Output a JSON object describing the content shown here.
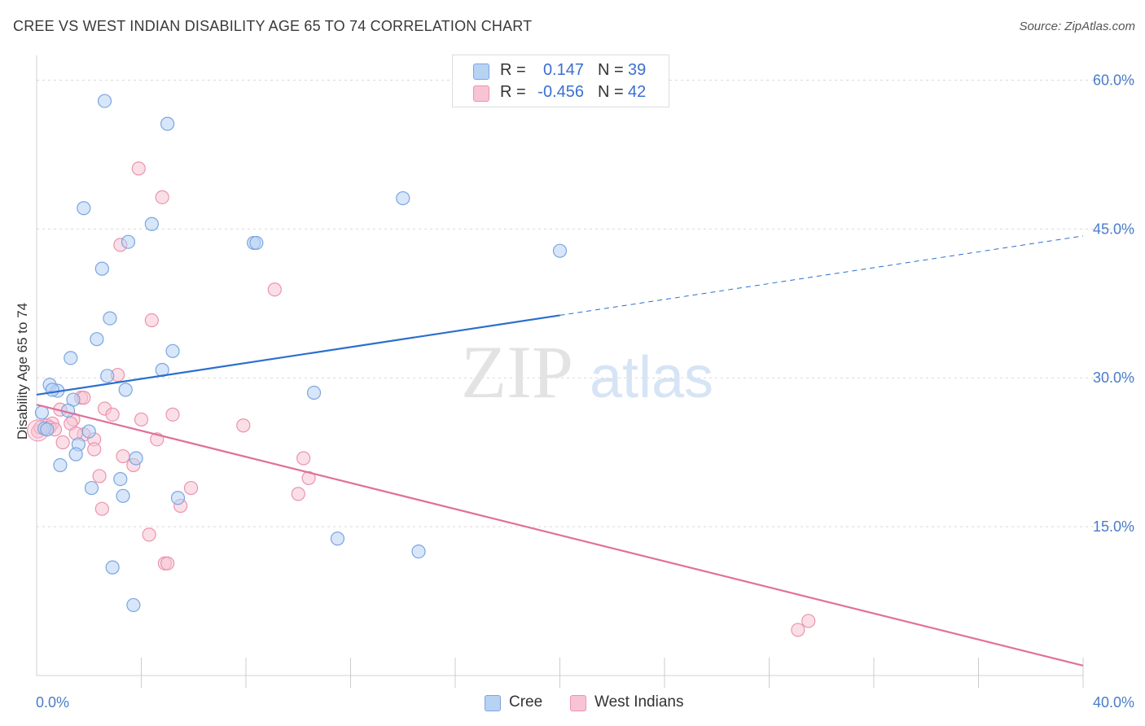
{
  "title": "CREE VS WEST INDIAN DISABILITY AGE 65 TO 74 CORRELATION CHART",
  "source": "Source: ZipAtlas.com",
  "watermark": {
    "part1": "ZIP",
    "part2": "atlas"
  },
  "legend": {
    "r_label": "R =",
    "n_label": "N =",
    "rows": [
      {
        "name": "Cree",
        "r": "0.147",
        "n": "39"
      },
      {
        "name": "West Indians",
        "r": "-0.456",
        "n": "42"
      }
    ]
  },
  "colors": {
    "cree_fill": "#b8d2f4",
    "cree_stroke": "#7aa6e0",
    "cree_line": "#2b6fcf",
    "wi_fill": "#f8c4d3",
    "wi_stroke": "#eb93ae",
    "wi_line": "#e0709a",
    "grid": "#d9d9d9",
    "axis_text": "#4a7cc8"
  },
  "chart_data": {
    "type": "scatter",
    "title": "CREE VS WEST INDIAN DISABILITY AGE 65 TO 74 CORRELATION CHART",
    "xlabel": "",
    "ylabel": "Disability Age 65 to 74",
    "xlim": [
      0,
      40
    ],
    "ylim": [
      0,
      62.5
    ],
    "x_tick_labels": [
      {
        "value": 0,
        "label": "0.0%"
      },
      {
        "value": 40,
        "label": "40.0%"
      }
    ],
    "y_tick_labels": [
      {
        "value": 15,
        "label": "15.0%"
      },
      {
        "value": 30,
        "label": "30.0%"
      },
      {
        "value": 45,
        "label": "45.0%"
      },
      {
        "value": 60,
        "label": "60.0%"
      }
    ],
    "series": [
      {
        "name": "Cree",
        "r": 0.147,
        "n": 39,
        "trend": {
          "x0": 0,
          "y0": 28.3,
          "x1": 20,
          "y1": 36.3,
          "dash_to_x": 40,
          "dash_to_y": 44.3
        },
        "points": [
          [
            2.6,
            57.9
          ],
          [
            5.0,
            55.6
          ],
          [
            14.0,
            48.1
          ],
          [
            1.8,
            47.1
          ],
          [
            4.4,
            45.5
          ],
          [
            3.5,
            43.7
          ],
          [
            8.3,
            43.6
          ],
          [
            8.4,
            43.6
          ],
          [
            20.0,
            42.8
          ],
          [
            2.5,
            41.0
          ],
          [
            2.8,
            36.0
          ],
          [
            2.3,
            33.9
          ],
          [
            5.2,
            32.7
          ],
          [
            1.3,
            32.0
          ],
          [
            4.8,
            30.8
          ],
          [
            2.7,
            30.2
          ],
          [
            0.5,
            29.3
          ],
          [
            0.8,
            28.7
          ],
          [
            3.4,
            28.8
          ],
          [
            10.6,
            28.5
          ],
          [
            0.6,
            28.8
          ],
          [
            1.4,
            27.8
          ],
          [
            0.2,
            26.5
          ],
          [
            1.2,
            26.7
          ],
          [
            0.3,
            24.9
          ],
          [
            0.4,
            24.8
          ],
          [
            2.0,
            24.6
          ],
          [
            1.6,
            23.3
          ],
          [
            1.5,
            22.3
          ],
          [
            3.8,
            21.9
          ],
          [
            0.9,
            21.2
          ],
          [
            3.2,
            19.8
          ],
          [
            2.1,
            18.9
          ],
          [
            3.3,
            18.1
          ],
          [
            5.4,
            17.9
          ],
          [
            11.5,
            13.8
          ],
          [
            14.6,
            12.5
          ],
          [
            2.9,
            10.9
          ],
          [
            3.7,
            7.1
          ]
        ]
      },
      {
        "name": "West Indians",
        "r": -0.456,
        "n": 42,
        "trend": {
          "x0": 0,
          "y0": 27.3,
          "x1": 40,
          "y1": 1.0
        },
        "points": [
          [
            3.9,
            51.1
          ],
          [
            4.8,
            48.2
          ],
          [
            3.2,
            43.4
          ],
          [
            9.1,
            38.9
          ],
          [
            4.4,
            35.8
          ],
          [
            3.1,
            30.3
          ],
          [
            0.4,
            25.2
          ],
          [
            0.6,
            25.4
          ],
          [
            1.7,
            28.0
          ],
          [
            1.8,
            28.0
          ],
          [
            0.9,
            26.8
          ],
          [
            2.6,
            26.9
          ],
          [
            2.9,
            26.3
          ],
          [
            4.0,
            25.8
          ],
          [
            5.2,
            26.3
          ],
          [
            1.4,
            25.8
          ],
          [
            1.3,
            25.4
          ],
          [
            0.5,
            25.0
          ],
          [
            0.7,
            24.8
          ],
          [
            1.8,
            24.3
          ],
          [
            7.9,
            25.2
          ],
          [
            2.2,
            23.8
          ],
          [
            1.0,
            23.5
          ],
          [
            1.5,
            24.4
          ],
          [
            4.6,
            23.8
          ],
          [
            2.2,
            22.8
          ],
          [
            3.3,
            22.1
          ],
          [
            3.7,
            21.2
          ],
          [
            10.2,
            21.9
          ],
          [
            2.4,
            20.1
          ],
          [
            10.4,
            19.9
          ],
          [
            5.9,
            18.9
          ],
          [
            10.0,
            18.3
          ],
          [
            5.5,
            17.1
          ],
          [
            2.5,
            16.8
          ],
          [
            4.3,
            14.2
          ],
          [
            4.9,
            11.3
          ],
          [
            5.0,
            11.3
          ],
          [
            29.5,
            5.5
          ],
          [
            29.1,
            4.6
          ],
          [
            0.05,
            24.6
          ],
          [
            0.15,
            25.0
          ]
        ]
      }
    ]
  }
}
